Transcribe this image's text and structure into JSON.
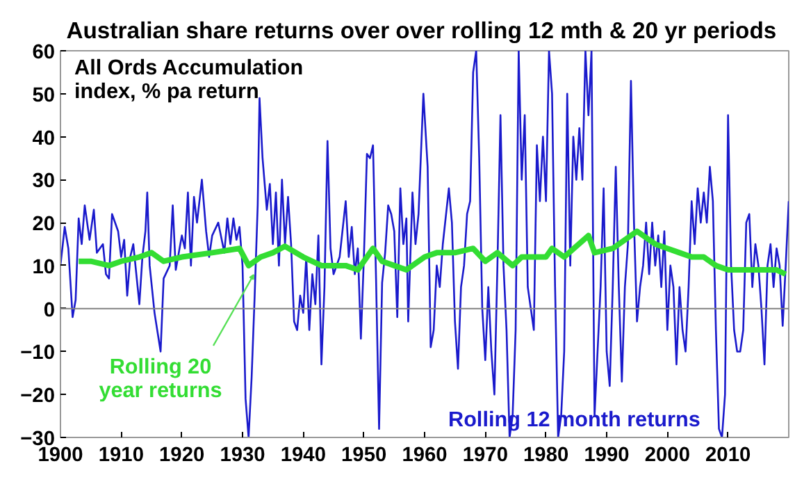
{
  "chart_data": {
    "type": "line",
    "title": "Australian share returns over over rolling 12 mth  & 20 yr periods",
    "annotations": [
      "All Ords Accumulation\nindex, % pa return"
    ],
    "xlim": [
      1900,
      2020
    ],
    "xticks": [
      1900,
      1910,
      1920,
      1930,
      1940,
      1950,
      1960,
      1970,
      1980,
      1990,
      2000,
      2010
    ],
    "ylim": [
      -30,
      60
    ],
    "yticks": [
      -30,
      -20,
      -10,
      0,
      10,
      20,
      30,
      40,
      50,
      60
    ],
    "grid": false,
    "marker": "none",
    "line_style": "solid",
    "ref_lines": [
      {
        "axis": "y",
        "value": 0,
        "color": "#808080"
      }
    ],
    "series": [
      {
        "name": "Rolling 12 month returns",
        "color": "#1a1acc",
        "x": [
          1900,
          1900.7,
          1901.3,
          1902,
          1902.5,
          1903,
          1903.5,
          1904,
          1904.8,
          1905.5,
          1906,
          1907,
          1907.5,
          1908,
          1908.5,
          1909.5,
          1910,
          1910.5,
          1911,
          1911.5,
          1912,
          1913,
          1913.5,
          1914,
          1914.3,
          1914.7,
          1915.5,
          1916.5,
          1917,
          1918,
          1918.5,
          1919,
          1920,
          1920.5,
          1921,
          1921.5,
          1922,
          1922.5,
          1923.3,
          1924,
          1924.5,
          1925,
          1926,
          1927,
          1927.5,
          1928,
          1928.5,
          1929,
          1929.5,
          1930,
          1930.5,
          1931,
          1931.5,
          1932,
          1932.5,
          1932.8,
          1933.3,
          1934,
          1934.5,
          1935,
          1935.5,
          1936,
          1936.5,
          1937,
          1937.5,
          1938,
          1938.5,
          1939,
          1939.5,
          1940,
          1940.5,
          1941,
          1941.5,
          1942,
          1942.5,
          1943,
          1943.5,
          1944,
          1944.5,
          1945,
          1946,
          1947,
          1947.5,
          1948,
          1948.5,
          1949,
          1949.5,
          1950,
          1950.5,
          1951,
          1951.5,
          1952,
          1952.5,
          1953,
          1953.5,
          1954,
          1954.5,
          1955,
          1955.5,
          1956,
          1956.5,
          1957,
          1957.3,
          1958,
          1958.5,
          1959,
          1959.8,
          1960.5,
          1961,
          1961.5,
          1962,
          1962.5,
          1963,
          1964,
          1964.5,
          1965,
          1965.5,
          1966,
          1966.5,
          1967,
          1967.5,
          1968,
          1968.5,
          1969,
          1969.5,
          1970,
          1970.5,
          1971,
          1971.5,
          1972,
          1972.5,
          1973,
          1973.5,
          1974,
          1974.5,
          1975,
          1975.5,
          1976,
          1976.5,
          1977,
          1978,
          1978.5,
          1979,
          1979.5,
          1980,
          1980.5,
          1981,
          1981.5,
          1982,
          1982.5,
          1983,
          1983.5,
          1984,
          1984.5,
          1985,
          1985.5,
          1986,
          1986.5,
          1987,
          1987.5,
          1988,
          1988.5,
          1989,
          1989.5,
          1990,
          1990.5,
          1991,
          1991.5,
          1992,
          1992.5,
          1993,
          1993.5,
          1994,
          1994.5,
          1995,
          1995.5,
          1996,
          1996.5,
          1997,
          1997.5,
          1998,
          1998.5,
          1999,
          1999.5,
          2000,
          2000.5,
          2001,
          2001.5,
          2002,
          2002.5,
          2003,
          2003.5,
          2004,
          2004.5,
          2005,
          2005.5,
          2006,
          2006.5,
          2007,
          2007.5,
          2008,
          2008.5,
          2009,
          2009.5,
          2010,
          2010.5,
          2011,
          2011.5,
          2012,
          2012.5,
          2013,
          2013.5,
          2014,
          2014.5,
          2015,
          2015.5,
          2016,
          2016.5,
          2017,
          2017.5,
          2018,
          2018.5,
          2019,
          2019.5,
          2020
        ],
        "values": [
          10,
          19,
          14,
          -2,
          2,
          21,
          15,
          24,
          16,
          23,
          13,
          15,
          8,
          7,
          22,
          18,
          12,
          16,
          3,
          12,
          15,
          1,
          12,
          18,
          27,
          10,
          -1,
          -10,
          7,
          10,
          24,
          9,
          17,
          14,
          27,
          10,
          26,
          20,
          30,
          18,
          12,
          17,
          20,
          13,
          21,
          15,
          21,
          16,
          19,
          10,
          -21,
          -30,
          -16,
          3,
          24,
          49,
          35,
          23,
          29,
          15,
          27,
          10,
          30,
          15,
          26,
          15,
          -3,
          -5,
          3,
          -1,
          12,
          -5,
          8,
          1,
          17,
          -13,
          5,
          39,
          14,
          8,
          12,
          25,
          12,
          19,
          8,
          14,
          -7,
          12,
          36,
          35,
          38,
          7,
          -28,
          6,
          13,
          24,
          22,
          18,
          -2,
          28,
          15,
          21,
          -3,
          27,
          15,
          22,
          50,
          33,
          -9,
          -5,
          10,
          5,
          15,
          28,
          20,
          -3,
          -14,
          5,
          10,
          22,
          25,
          55,
          60,
          35,
          0,
          -12,
          5,
          -10,
          -20,
          10,
          45,
          10,
          -5,
          -30,
          -25,
          -5,
          60,
          30,
          45,
          5,
          -5,
          38,
          25,
          40,
          25,
          60,
          50,
          5,
          -30,
          -25,
          -10,
          50,
          10,
          40,
          30,
          42,
          30,
          60,
          45,
          60,
          -25,
          -10,
          5,
          28,
          -10,
          -18,
          5,
          33,
          5,
          -17,
          5,
          15,
          53,
          20,
          -3,
          5,
          10,
          20,
          8,
          20,
          10,
          17,
          5,
          18,
          -5,
          10,
          5,
          -13,
          5,
          -5,
          -10,
          5,
          25,
          15,
          28,
          20,
          27,
          20,
          33,
          25,
          -5,
          -28,
          -30,
          -20,
          45,
          10,
          -5,
          -10,
          -10,
          -5,
          20,
          22,
          5,
          15,
          10,
          0,
          -13,
          10,
          15,
          5,
          14,
          10,
          -4,
          10,
          25
        ]
      },
      {
        "name": "Rolling 20\nyear returns",
        "color": "#33dd33",
        "x": [
          1903,
          1905,
          1908,
          1910,
          1913,
          1915,
          1917,
          1920,
          1925,
          1929.5,
          1931,
          1933,
          1935,
          1937,
          1940,
          1943,
          1947,
          1949,
          1951.5,
          1953,
          1955,
          1957,
          1960,
          1962,
          1965,
          1968,
          1970,
          1972,
          1974.5,
          1976,
          1980,
          1981,
          1983,
          1987,
          1988,
          1991,
          1995,
          1998,
          2000,
          2002,
          2004,
          2006,
          2008,
          2010,
          2012,
          2015,
          2018,
          2019.5
        ],
        "values": [
          11,
          11,
          10,
          11,
          12,
          13,
          11,
          12,
          13,
          14,
          10,
          12,
          13,
          14.5,
          12,
          10,
          10,
          9,
          14,
          11,
          10,
          9,
          12,
          13,
          13,
          14,
          11,
          13,
          10,
          12,
          12,
          14,
          12,
          17,
          13,
          14,
          18,
          15,
          14,
          13,
          12,
          12,
          10,
          9,
          9,
          9,
          9,
          8
        ]
      }
    ]
  }
}
